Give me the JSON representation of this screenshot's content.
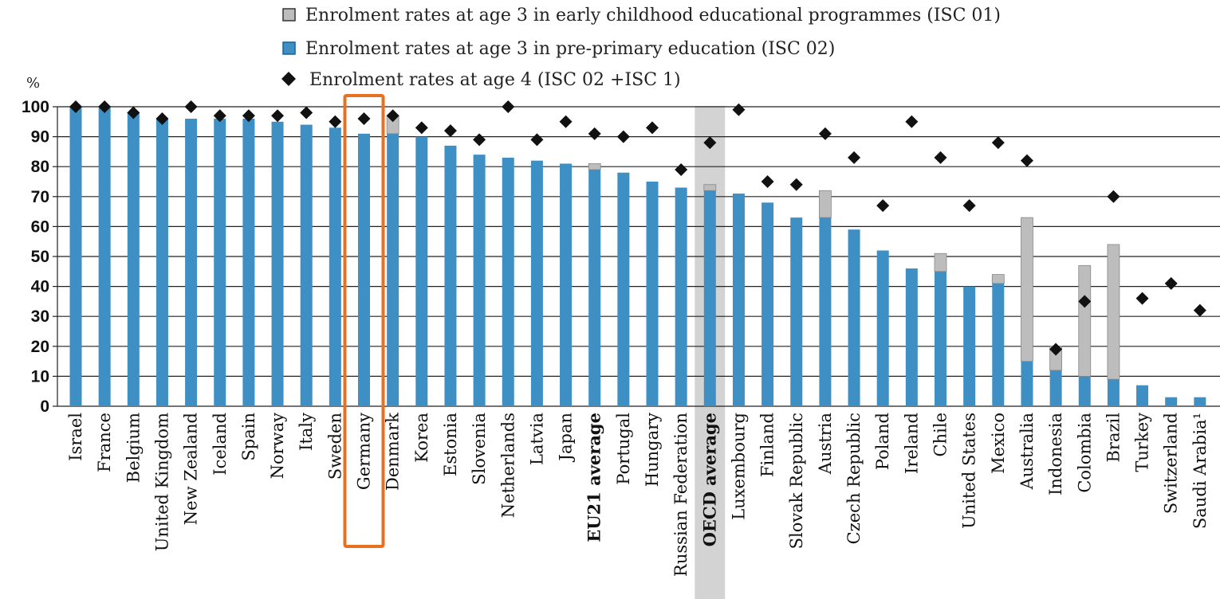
{
  "chart_data": {
    "type": "bar",
    "ylabel": "%",
    "ylim": [
      0,
      100
    ],
    "yticks": [
      0,
      10,
      20,
      30,
      40,
      50,
      60,
      70,
      80,
      90,
      100
    ],
    "grid": true,
    "legend_position": "top",
    "highlighted_category": "Germany",
    "shaded_category": "OECD average",
    "bold_categories": [
      "EU21 average",
      "OECD average"
    ],
    "colors": {
      "isc01": "#bdbdbd",
      "isc02": "#3d8fc4",
      "marker": "#111111",
      "highlight_box": "#e8711f",
      "shade": "#d3d3d3"
    },
    "categories": [
      "Israel",
      "France",
      "Belgium",
      "United Kingdom",
      "New Zealand",
      "Iceland",
      "Spain",
      "Norway",
      "Italy",
      "Sweden",
      "Germany",
      "Denmark",
      "Korea",
      "Estonia",
      "Slovenia",
      "Netherlands",
      "Latvia",
      "Japan",
      "EU21 average",
      "Portugal",
      "Hungary",
      "Russian Federation",
      "OECD average",
      "Luxembourg",
      "Finland",
      "Slovak Republic",
      "Austria",
      "Czech Republic",
      "Poland",
      "Ireland",
      "Chile",
      "United States",
      "Mexico",
      "Australia",
      "Indonesia",
      "Colombia",
      "Brazil",
      "Turkey",
      "Switzerland",
      "Saudi Arabia¹"
    ],
    "series": [
      {
        "name": "Enrolment rates at age 3 in early childhood educational programmes (ISC 01)",
        "kind": "stacked-bar",
        "values": [
          0,
          0,
          0,
          0,
          0,
          0,
          0,
          0,
          0,
          0,
          0,
          6,
          0,
          0,
          0,
          0,
          0,
          0,
          2,
          0,
          0,
          0,
          2,
          0,
          0,
          0,
          9,
          0,
          0,
          0,
          6,
          0,
          3,
          48,
          8,
          37,
          45,
          0,
          0,
          0
        ]
      },
      {
        "name": "Enrolment rates at age 3 in pre-primary education (ISC 02)",
        "kind": "bar",
        "values": [
          100,
          100,
          98,
          96,
          96,
          96,
          96,
          95,
          94,
          93,
          91,
          91,
          90,
          87,
          84,
          83,
          82,
          81,
          79,
          78,
          75,
          73,
          72,
          71,
          68,
          63,
          63,
          59,
          52,
          46,
          45,
          40,
          41,
          15,
          12,
          10,
          9,
          7,
          3,
          3
        ]
      },
      {
        "name": "Enrolment rates at age 4 (ISC 02 +ISC 1)",
        "kind": "marker",
        "values": [
          100,
          100,
          98,
          96,
          100,
          97,
          97,
          97,
          98,
          95,
          96,
          97,
          93,
          92,
          89,
          100,
          89,
          95,
          91,
          90,
          93,
          79,
          88,
          99,
          75,
          74,
          91,
          83,
          67,
          95,
          83,
          67,
          88,
          82,
          19,
          35,
          70,
          36,
          41,
          32
        ]
      }
    ]
  }
}
